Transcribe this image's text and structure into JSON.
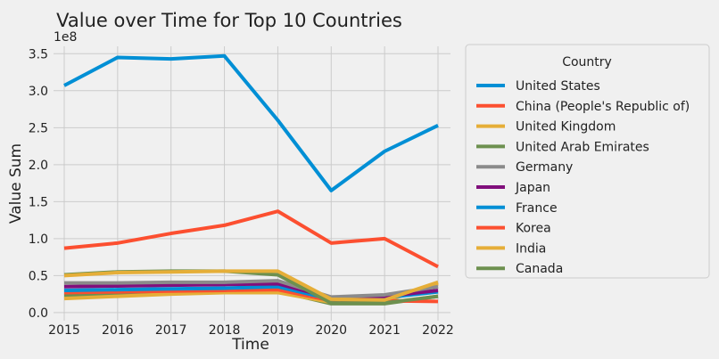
{
  "chart_data": {
    "type": "line",
    "title": "Value over Time for Top 10 Countries",
    "xlabel": "Time",
    "ylabel": "Value Sum",
    "y_offset_label": "1e8",
    "x": [
      2015,
      2016,
      2017,
      2018,
      2019,
      2020,
      2021,
      2022
    ],
    "xticks": [
      "2015",
      "2016",
      "2017",
      "2018",
      "2019",
      "2020",
      "2021",
      "2022"
    ],
    "yticks": [
      "0.0",
      "0.5",
      "1.0",
      "1.5",
      "2.0",
      "2.5",
      "3.0",
      "3.5"
    ],
    "ylim": [
      -11000000,
      360000000
    ],
    "grid": true,
    "legend": {
      "title": "Country",
      "placement": "outside-right"
    },
    "series": [
      {
        "name": "United States",
        "color": "#008fd5",
        "values": [
          307000000,
          345000000,
          343000000,
          347000000,
          260000000,
          165000000,
          218000000,
          253000000
        ]
      },
      {
        "name": "China (People's Republic of)",
        "color": "#fc4f30",
        "values": [
          87000000,
          94000000,
          107000000,
          118000000,
          137000000,
          94000000,
          100000000,
          62000000
        ]
      },
      {
        "name": "United Kingdom",
        "color": "#e5ae38",
        "values": [
          50000000,
          54000000,
          55000000,
          56000000,
          56000000,
          18000000,
          17000000,
          41000000
        ]
      },
      {
        "name": "United Arab Emirates",
        "color": "#6d904f",
        "values": [
          51000000,
          55000000,
          56000000,
          56000000,
          51000000,
          13000000,
          13000000,
          22000000
        ]
      },
      {
        "name": "Germany",
        "color": "#8b8b8b",
        "values": [
          40000000,
          40000000,
          41000000,
          41000000,
          43000000,
          21000000,
          24000000,
          35000000
        ]
      },
      {
        "name": "Japan",
        "color": "#810f7c",
        "values": [
          35000000,
          36000000,
          37000000,
          38000000,
          39000000,
          20000000,
          22000000,
          30000000
        ]
      },
      {
        "name": "France",
        "color": "#008fd5",
        "values": [
          30000000,
          31000000,
          32000000,
          33000000,
          35000000,
          18000000,
          20000000,
          28000000
        ]
      },
      {
        "name": "Korea",
        "color": "#fc4f30",
        "values": [
          27000000,
          28000000,
          29000000,
          30000000,
          31000000,
          16000000,
          16000000,
          15000000
        ]
      },
      {
        "name": "India",
        "color": "#e5ae38",
        "values": [
          19000000,
          22000000,
          25000000,
          27000000,
          27000000,
          14000000,
          15000000,
          39000000
        ]
      },
      {
        "name": "Canada",
        "color": "#6d904f",
        "values": [
          23000000,
          25000000,
          27000000,
          28000000,
          29000000,
          12000000,
          12000000,
          22000000
        ]
      }
    ]
  }
}
